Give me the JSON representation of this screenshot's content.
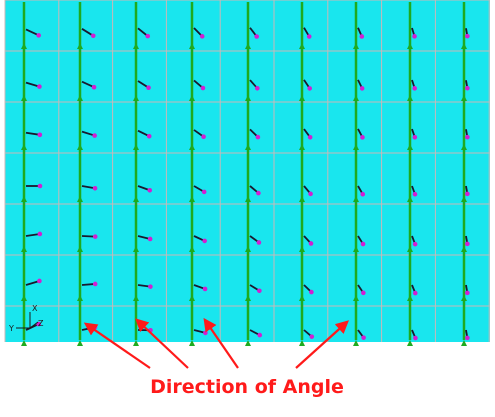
{
  "caption": "Direction of Angle",
  "triad": {
    "x": "X",
    "y": "Y",
    "z": "Z"
  }
}
